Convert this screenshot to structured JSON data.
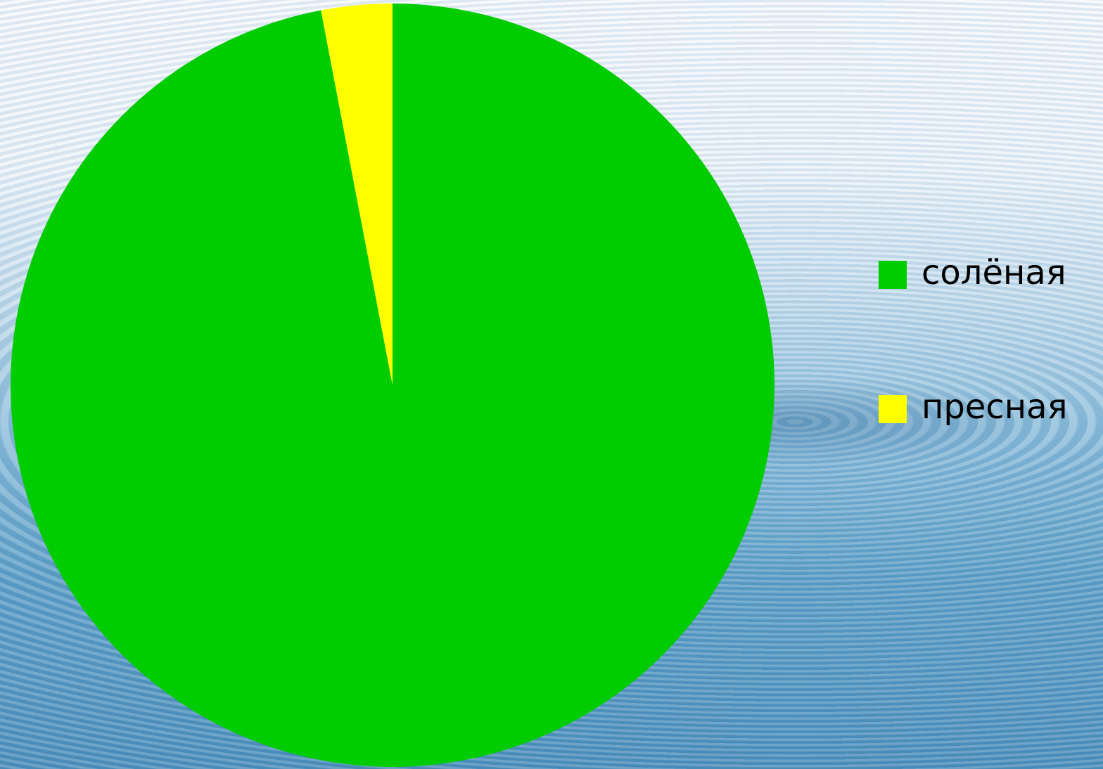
{
  "chart_data": {
    "type": "pie",
    "categories": [
      "солёная",
      "пресная"
    ],
    "values": [
      97,
      3
    ],
    "colors": [
      "#00cc00",
      "#ffff00"
    ],
    "legend": "right"
  }
}
